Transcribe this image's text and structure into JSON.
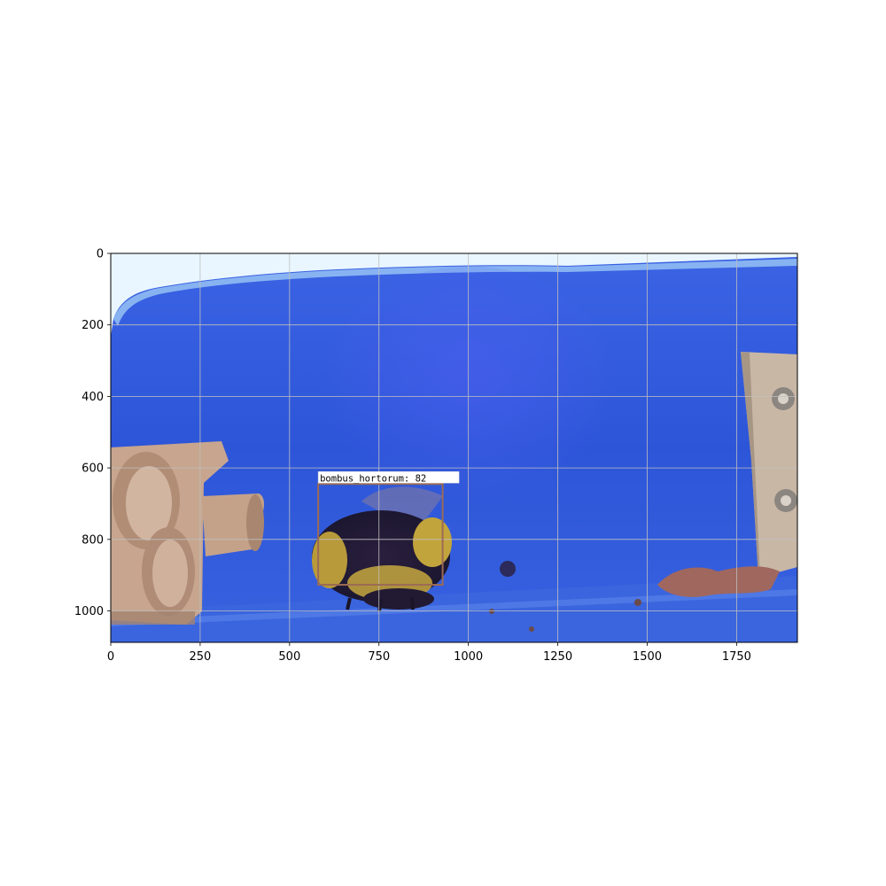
{
  "image": {
    "description_icon": "photo-icon",
    "x_range": [
      0,
      1920
    ],
    "y_range": [
      1088,
      0
    ],
    "grid": true
  },
  "axes": {
    "x_ticks": [
      {
        "value": 0,
        "label": "0"
      },
      {
        "value": 250,
        "label": "250"
      },
      {
        "value": 500,
        "label": "500"
      },
      {
        "value": 750,
        "label": "750"
      },
      {
        "value": 1000,
        "label": "1000"
      },
      {
        "value": 1250,
        "label": "1250"
      },
      {
        "value": 1500,
        "label": "1500"
      },
      {
        "value": 1750,
        "label": "1750"
      }
    ],
    "y_ticks": [
      {
        "value": 0,
        "label": "0"
      },
      {
        "value": 200,
        "label": "200"
      },
      {
        "value": 400,
        "label": "400"
      },
      {
        "value": 600,
        "label": "600"
      },
      {
        "value": 800,
        "label": "800"
      },
      {
        "value": 1000,
        "label": "1000"
      }
    ]
  },
  "detection": {
    "label": "bombus_hortorum: 82",
    "box": {
      "x0": 580,
      "y0": 645,
      "x1": 928,
      "y1": 927
    },
    "box_color": "#9b6b55"
  },
  "colors": {
    "background_blue": "#2f57d8",
    "grid": "#bfbfbf"
  }
}
